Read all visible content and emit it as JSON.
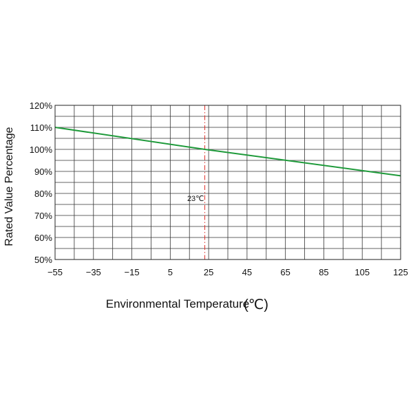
{
  "chart_data": {
    "type": "line",
    "title": "",
    "xlabel": "Environmental Temperature",
    "xlabel_unit": "(℃)",
    "ylabel": "Rated Value Percentage",
    "xlim": [
      -55,
      125
    ],
    "ylim": [
      50,
      120
    ],
    "x_ticks": [
      -55,
      -35,
      -15,
      5,
      25,
      45,
      65,
      85,
      105,
      125
    ],
    "x_tick_labels": [
      "−55",
      "−35",
      "−15",
      "5",
      "25",
      "45",
      "65",
      "85",
      "105",
      "125"
    ],
    "y_ticks": [
      50,
      60,
      70,
      80,
      90,
      100,
      110,
      120
    ],
    "y_tick_labels": [
      "50%",
      "60%",
      "70%",
      "80%",
      "90%",
      "100%",
      "110%",
      "120%"
    ],
    "grid": true,
    "grid_x_step": 10,
    "grid_y_step": 5,
    "series": [
      {
        "color": "#1e9a3a",
        "x": [
          -55,
          23,
          125
        ],
        "y": [
          110,
          100,
          88
        ]
      }
    ],
    "reference_line": {
      "x": 23,
      "label": "23℃",
      "color": "#e0302a",
      "style": "dash-dot"
    }
  }
}
